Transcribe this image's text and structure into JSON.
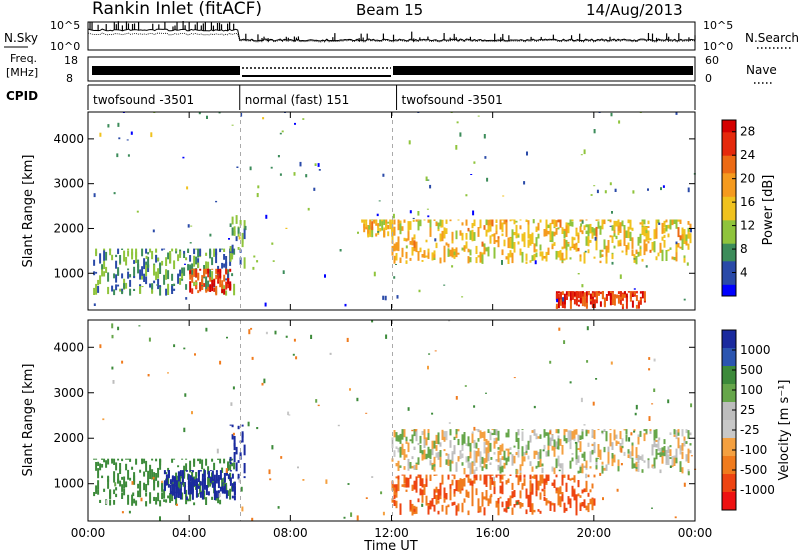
{
  "header": {
    "title": "Rankin Inlet (fitACF)",
    "beam": "Beam 15",
    "date": "14/Aug/2013"
  },
  "sky_panel": {
    "left_label": "N.Sky",
    "left_ticks": [
      "10^5",
      "10^0"
    ],
    "right_ticks": [
      "10^5",
      "10^0"
    ],
    "right_label": "N.Search"
  },
  "freq_panel": {
    "left_label_1": "Freq.",
    "left_label_2": "[MHz]",
    "left_ticks": [
      "18",
      "8"
    ],
    "right_ticks": [
      "60",
      "0"
    ],
    "right_label": "Nave"
  },
  "cpid": {
    "label": "CPID",
    "segments": [
      {
        "name": "twofsound -3501",
        "start_h": 0,
        "end_h": 6
      },
      {
        "name": "normal (fast) 151",
        "start_h": 6,
        "end_h": 12.2
      },
      {
        "name": "twofsound -3501",
        "start_h": 12.2,
        "end_h": 24
      }
    ]
  },
  "colors": {
    "power_scale": [
      "#0000ff",
      "#2a4aa8",
      "#3c8c5a",
      "#8fc43c",
      "#f0c21e",
      "#f59a1e",
      "#ec6a14",
      "#e5290c",
      "#d40000"
    ],
    "velocity_scale": [
      "#ee1111",
      "#ee4411",
      "#f07b1d",
      "#f4a040",
      "#c8c8c8",
      "#bdbdbd",
      "#66a64a",
      "#3c8a3a",
      "#2b55b0",
      "#1a2a9e"
    ]
  },
  "chart_data": [
    {
      "type": "heatmap",
      "panel": "power",
      "ylabel": "Slant Range [km]",
      "xlim_h": [
        0,
        24
      ],
      "ylim": [
        180,
        4600
      ],
      "yticks": [
        "1000",
        "2000",
        "3000",
        "4000"
      ],
      "colorbar": {
        "title": "Power [dB]",
        "ticks": [
          "4",
          "8",
          "12",
          "16",
          "20",
          "24",
          "28"
        ],
        "range": [
          0,
          30
        ]
      },
      "regions": [
        {
          "t0": 0.2,
          "t1": 5.8,
          "r0": 500,
          "r1": 1550,
          "level": 8
        },
        {
          "t0": 4.0,
          "t1": 5.6,
          "r0": 500,
          "r1": 1100,
          "level": 26
        },
        {
          "t0": 5.6,
          "t1": 6.2,
          "r0": 1000,
          "r1": 2300,
          "level": 8
        },
        {
          "t0": 10.8,
          "t1": 12.0,
          "r0": 1800,
          "r1": 2200,
          "level": 16
        },
        {
          "t0": 12.0,
          "t1": 23.8,
          "r0": 1200,
          "r1": 2200,
          "level": 16
        },
        {
          "t0": 18.5,
          "t1": 22.0,
          "r0": 200,
          "r1": 600,
          "level": 26
        }
      ]
    },
    {
      "type": "heatmap",
      "panel": "velocity",
      "xlabel": "Time UT",
      "ylabel": "Slant Range [km]",
      "xlim_h": [
        0,
        24
      ],
      "ylim": [
        180,
        4600
      ],
      "xticks": [
        "00:00",
        "04:00",
        "08:00",
        "12:00",
        "16:00",
        "20:00",
        "00:00"
      ],
      "yticks": [
        "1000",
        "2000",
        "3000",
        "4000"
      ],
      "colorbar": {
        "title": "Velocity [m s⁻¹]",
        "ticks": [
          "1000",
          "500",
          "100",
          "25",
          "-25",
          "-100",
          "-500",
          "-1000"
        ]
      },
      "regions": [
        {
          "t0": 0.2,
          "t1": 5.8,
          "r0": 500,
          "r1": 1550,
          "level": 150
        },
        {
          "t0": 3.0,
          "t1": 5.8,
          "r0": 600,
          "r1": 1300,
          "level": 800
        },
        {
          "t0": 5.6,
          "t1": 6.2,
          "r0": 1000,
          "r1": 2300,
          "level": 800
        },
        {
          "t0": 12.0,
          "t1": 23.8,
          "r0": 1200,
          "r1": 2200,
          "level": 0
        },
        {
          "t0": 12.0,
          "t1": 20.0,
          "r0": 300,
          "r1": 1200,
          "level": -300
        }
      ]
    }
  ]
}
